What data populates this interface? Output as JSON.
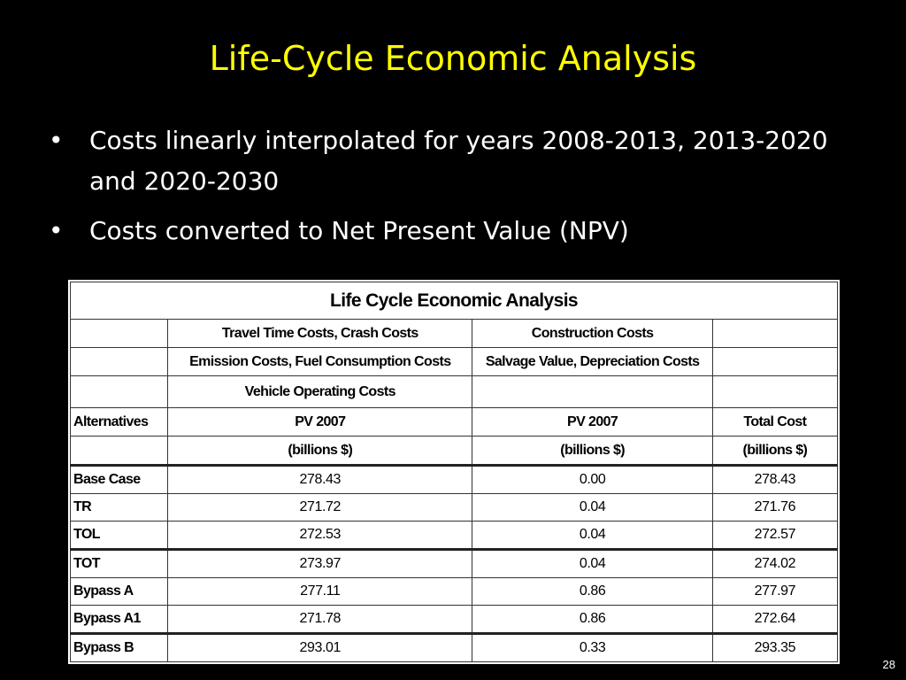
{
  "slide": {
    "title": "Life-Cycle Economic Analysis",
    "bullets": [
      "Costs linearly interpolated for years 2008-2013, 2013-2020 and 2020-2030",
      "Costs converted to Net Present Value (NPV)"
    ],
    "bullet_glyph": "•",
    "page_number": "28",
    "colors": {
      "background": "#000000",
      "title": "#ffff00",
      "text": "#ffffff"
    }
  },
  "table": {
    "title": "Life Cycle Economic Analysis",
    "header": {
      "user_costs_line1": "Travel Time Costs, Crash Costs",
      "user_costs_line2": "Emission Costs, Fuel Consumption Costs",
      "user_costs_line3": "Vehicle Operating Costs",
      "agency_costs_line1": "Construction Costs",
      "agency_costs_line2": "Salvage Value, Depreciation Costs",
      "alternatives": "Alternatives",
      "pv_user": "PV 2007",
      "pv_agency": "PV 2007",
      "total_cost": "Total Cost",
      "unit_user": "(billions $)",
      "unit_agency": "(billions $)",
      "unit_total": "(billions $)"
    },
    "rows": [
      {
        "alternative": "Base Case",
        "user_pv": "278.43",
        "agency_pv": "0.00",
        "total": "278.43"
      },
      {
        "alternative": "TR",
        "user_pv": "271.72",
        "agency_pv": "0.04",
        "total": "271.76"
      },
      {
        "alternative": "TOL",
        "user_pv": "272.53",
        "agency_pv": "0.04",
        "total": "272.57"
      },
      {
        "alternative": "TOT",
        "user_pv": "273.97",
        "agency_pv": "0.04",
        "total": "274.02"
      },
      {
        "alternative": "Bypass A",
        "user_pv": "277.11",
        "agency_pv": "0.86",
        "total": "277.97"
      },
      {
        "alternative": "Bypass A1",
        "user_pv": "271.78",
        "agency_pv": "0.86",
        "total": "272.64"
      },
      {
        "alternative": "Bypass B",
        "user_pv": "293.01",
        "agency_pv": "0.33",
        "total": "293.35"
      }
    ]
  }
}
